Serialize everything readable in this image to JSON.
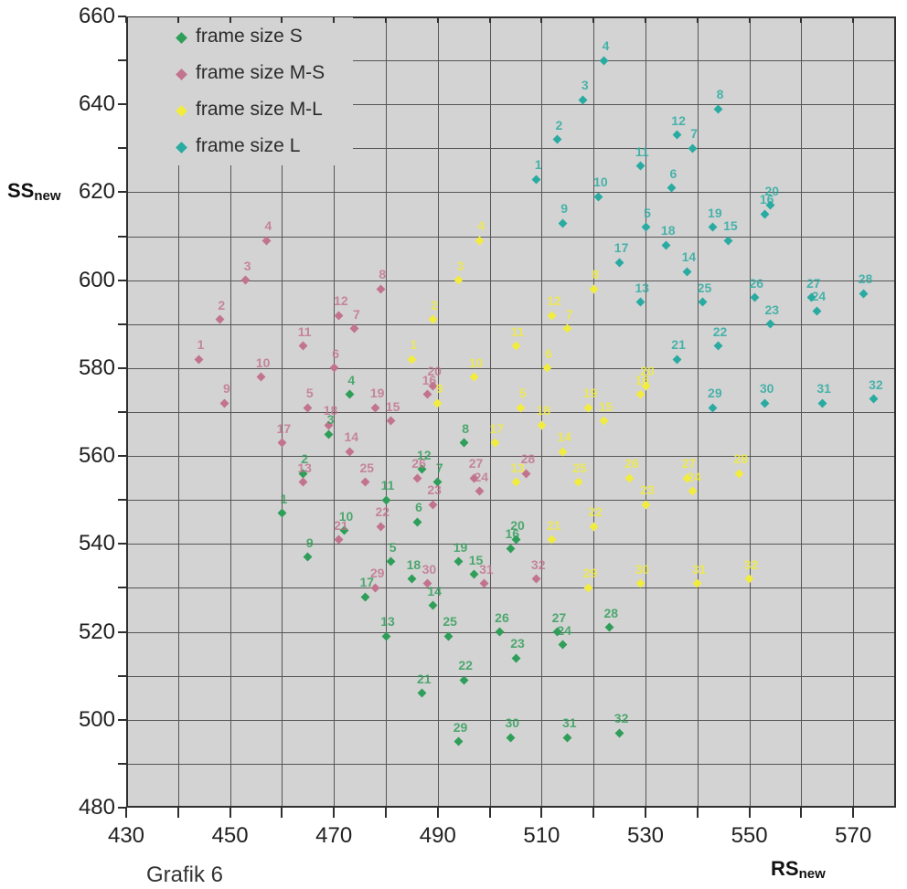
{
  "caption": "Grafik 6",
  "y_axis_title": {
    "main": "SS",
    "sub": "new"
  },
  "x_axis_title": {
    "main": "RS",
    "sub": "new"
  },
  "axes": {
    "x_tick_labels": [
      430,
      450,
      470,
      490,
      510,
      530,
      550,
      570
    ],
    "y_tick_labels": [
      660,
      640,
      620,
      600,
      580,
      560,
      540,
      520,
      500,
      480
    ],
    "x_grid_min": 430,
    "x_grid_max": 570,
    "y_grid_min": 480,
    "y_grid_max": 660,
    "grid_step": 10
  },
  "colors": {
    "plot_background": "#d3d3d3",
    "grid": "#565656",
    "border": "#2f2f2f",
    "tick_text": "#222222",
    "series_s": "#2f9e58",
    "series_ms": "#c2738e",
    "series_ml": "#f1ec3e",
    "series_l": "#29aba1"
  },
  "legend": [
    {
      "label": "frame size S",
      "color": "#2f9e58"
    },
    {
      "label": "frame size M-S",
      "color": "#c2738e"
    },
    {
      "label": "frame size M-L",
      "color": "#f1ec3e"
    },
    {
      "label": "frame size L",
      "color": "#29aba1"
    }
  ],
  "chart_data": {
    "type": "scatter",
    "title": "Grafik 6",
    "xlabel": "RS_new",
    "ylabel": "SS_new",
    "xlim": [
      430,
      578
    ],
    "ylim": [
      480,
      660
    ],
    "grid": "on",
    "legend_position": "top-left-inside",
    "point_label_note": "each marker is labeled with its point number n",
    "series": [
      {
        "name": "frame size S",
        "color": "#2f9e58",
        "points": [
          [
            1,
            460,
            547
          ],
          [
            2,
            464,
            556
          ],
          [
            3,
            469,
            565
          ],
          [
            4,
            473,
            574
          ],
          [
            5,
            481,
            536
          ],
          [
            6,
            486,
            545
          ],
          [
            7,
            490,
            554
          ],
          [
            8,
            495,
            563
          ],
          [
            9,
            465,
            537
          ],
          [
            10,
            472,
            543
          ],
          [
            11,
            480,
            550
          ],
          [
            12,
            487,
            557
          ],
          [
            13,
            480,
            519
          ],
          [
            14,
            489,
            526
          ],
          [
            15,
            497,
            533
          ],
          [
            16,
            504,
            539
          ],
          [
            17,
            476,
            528
          ],
          [
            18,
            485,
            532
          ],
          [
            19,
            494,
            536
          ],
          [
            20,
            505,
            541
          ],
          [
            21,
            487,
            506
          ],
          [
            22,
            495,
            509
          ],
          [
            23,
            505,
            514
          ],
          [
            24,
            514,
            517
          ],
          [
            25,
            492,
            519
          ],
          [
            26,
            502,
            520
          ],
          [
            27,
            513,
            520
          ],
          [
            28,
            523,
            521
          ],
          [
            29,
            494,
            495
          ],
          [
            30,
            504,
            496
          ],
          [
            31,
            515,
            496
          ],
          [
            32,
            525,
            497
          ]
        ]
      },
      {
        "name": "frame size M-S",
        "color": "#c2738e",
        "points": [
          [
            1,
            444,
            582
          ],
          [
            2,
            448,
            591
          ],
          [
            3,
            453,
            600
          ],
          [
            4,
            457,
            609
          ],
          [
            5,
            465,
            571
          ],
          [
            6,
            470,
            580
          ],
          [
            7,
            474,
            589
          ],
          [
            8,
            479,
            598
          ],
          [
            9,
            449,
            572
          ],
          [
            10,
            456,
            578
          ],
          [
            11,
            464,
            585
          ],
          [
            12,
            471,
            592
          ],
          [
            13,
            464,
            554
          ],
          [
            14,
            473,
            561
          ],
          [
            15,
            481,
            568
          ],
          [
            16,
            488,
            574
          ],
          [
            17,
            460,
            563
          ],
          [
            18,
            469,
            567
          ],
          [
            19,
            478,
            571
          ],
          [
            20,
            489,
            576
          ],
          [
            21,
            471,
            541
          ],
          [
            22,
            479,
            544
          ],
          [
            23,
            489,
            549
          ],
          [
            24,
            498,
            552
          ],
          [
            25,
            476,
            554
          ],
          [
            26,
            486,
            555
          ],
          [
            27,
            497,
            555
          ],
          [
            28,
            507,
            556
          ],
          [
            29,
            478,
            530
          ],
          [
            30,
            488,
            531
          ],
          [
            31,
            499,
            531
          ],
          [
            32,
            509,
            532
          ]
        ]
      },
      {
        "name": "frame size M-L",
        "color": "#f1ec3e",
        "points": [
          [
            1,
            485,
            582
          ],
          [
            2,
            489,
            591
          ],
          [
            3,
            494,
            600
          ],
          [
            4,
            498,
            609
          ],
          [
            5,
            506,
            571
          ],
          [
            6,
            511,
            580
          ],
          [
            7,
            515,
            589
          ],
          [
            8,
            520,
            598
          ],
          [
            9,
            490,
            572
          ],
          [
            10,
            497,
            578
          ],
          [
            11,
            505,
            585
          ],
          [
            12,
            512,
            592
          ],
          [
            13,
            505,
            554
          ],
          [
            14,
            514,
            561
          ],
          [
            15,
            522,
            568
          ],
          [
            16,
            529,
            574
          ],
          [
            17,
            501,
            563
          ],
          [
            18,
            510,
            567
          ],
          [
            19,
            519,
            571
          ],
          [
            20,
            530,
            576
          ],
          [
            21,
            512,
            541
          ],
          [
            22,
            520,
            544
          ],
          [
            23,
            530,
            549
          ],
          [
            24,
            539,
            552
          ],
          [
            25,
            517,
            554
          ],
          [
            26,
            527,
            555
          ],
          [
            27,
            538,
            555
          ],
          [
            28,
            548,
            556
          ],
          [
            29,
            519,
            530
          ],
          [
            30,
            529,
            531
          ],
          [
            31,
            540,
            531
          ],
          [
            32,
            550,
            532
          ]
        ]
      },
      {
        "name": "frame size L",
        "color": "#29aba1",
        "points": [
          [
            1,
            509,
            623
          ],
          [
            2,
            513,
            632
          ],
          [
            3,
            518,
            641
          ],
          [
            4,
            522,
            650
          ],
          [
            5,
            530,
            612
          ],
          [
            6,
            535,
            621
          ],
          [
            7,
            539,
            630
          ],
          [
            8,
            544,
            639
          ],
          [
            9,
            514,
            613
          ],
          [
            10,
            521,
            619
          ],
          [
            11,
            529,
            626
          ],
          [
            12,
            536,
            633
          ],
          [
            13,
            529,
            595
          ],
          [
            14,
            538,
            602
          ],
          [
            15,
            546,
            609
          ],
          [
            16,
            553,
            615
          ],
          [
            17,
            525,
            604
          ],
          [
            18,
            534,
            608
          ],
          [
            19,
            543,
            612
          ],
          [
            20,
            554,
            617
          ],
          [
            21,
            536,
            582
          ],
          [
            22,
            544,
            585
          ],
          [
            23,
            554,
            590
          ],
          [
            24,
            563,
            593
          ],
          [
            25,
            541,
            595
          ],
          [
            26,
            551,
            596
          ],
          [
            27,
            562,
            596
          ],
          [
            28,
            572,
            597
          ],
          [
            29,
            543,
            571
          ],
          [
            30,
            553,
            572
          ],
          [
            31,
            564,
            572
          ],
          [
            32,
            574,
            573
          ]
        ]
      }
    ]
  }
}
